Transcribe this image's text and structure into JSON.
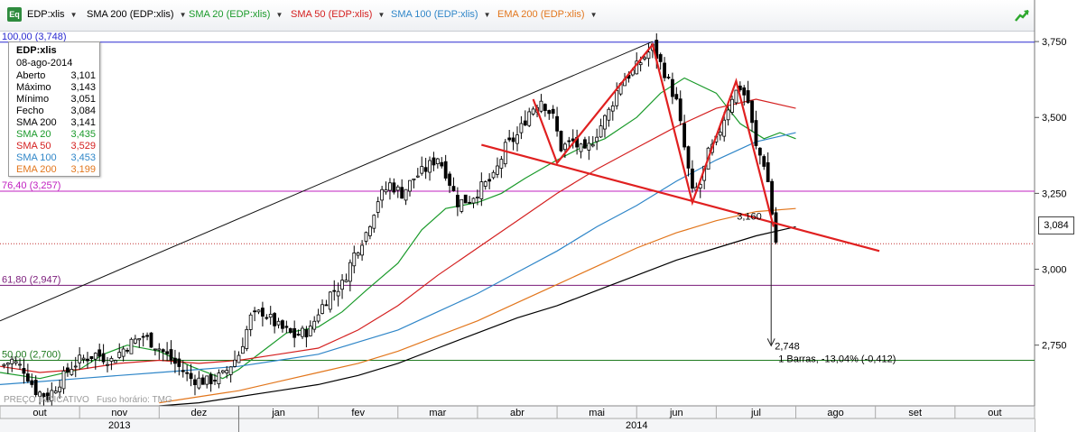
{
  "toolbar": {
    "eq_badge": "Eq",
    "symbol_label": "EDP:xlis",
    "indicators": [
      {
        "label": "SMA 200 (EDP:xlis)",
        "color": "#000000"
      },
      {
        "label": "SMA 20 (EDP:xlis)",
        "color": "#1a9a2a"
      },
      {
        "label": "SMA 50 (EDP:xlis)",
        "color": "#d42020"
      },
      {
        "label": "SMA 100 (EDP:xlis)",
        "color": "#2f86c8"
      },
      {
        "label": "EMA 200 (EDP:xlis)",
        "color": "#e2761c"
      }
    ]
  },
  "info_box": {
    "title": "EDP:xlis",
    "date": "08-ago-2014",
    "rows": [
      {
        "label": "Aberto",
        "value": "3,101",
        "color": "#000000"
      },
      {
        "label": "Máximo",
        "value": "3,143",
        "color": "#000000"
      },
      {
        "label": "Mínimo",
        "value": "3,051",
        "color": "#000000"
      },
      {
        "label": "Fecho",
        "value": "3,084",
        "color": "#000000"
      },
      {
        "label": "SMA 200",
        "value": "3,141",
        "color": "#000000"
      },
      {
        "label": "SMA 20",
        "value": "3,435",
        "color": "#1a9a2a"
      },
      {
        "label": "SMA 50",
        "value": "3,529",
        "color": "#d42020"
      },
      {
        "label": "SMA 100",
        "value": "3,453",
        "color": "#2f86c8"
      },
      {
        "label": "EMA 200",
        "value": "3,199",
        "color": "#e2761c"
      }
    ]
  },
  "price_tag": "3,084",
  "chart_data": {
    "type": "candlestick",
    "symbol": "EDP:xlis",
    "ylim": [
      2.55,
      3.78
    ],
    "y_ticks": [
      2.75,
      3.0,
      3.25,
      3.5,
      3.75
    ],
    "y_tick_labels": [
      "2,750",
      "3,000",
      "3,250",
      "3,500",
      "3,750"
    ],
    "x_month_labels": [
      "out",
      "nov",
      "dez",
      "jan",
      "fev",
      "mar",
      "abr",
      "mai",
      "jun",
      "jul",
      "ago",
      "set",
      "out"
    ],
    "x_year_labels": [
      "2013",
      "2014"
    ],
    "x_domain": [
      0,
      13
    ],
    "x_month_starts": [
      0,
      1,
      2,
      3,
      4,
      5,
      6,
      7,
      8,
      9,
      10,
      11,
      12,
      13
    ],
    "fib_levels": [
      {
        "label": "100,00 (3,748)",
        "value": 3.748,
        "color": "#2a2ad0"
      },
      {
        "label": "76,40 (3,257)",
        "value": 3.257,
        "color": "#c020c0"
      },
      {
        "label": "61,80 (2,947)",
        "value": 2.947,
        "color": "#7a1a7a"
      },
      {
        "label": "50,00 (2,700)",
        "value": 2.7,
        "color": "#1f7a1f"
      }
    ],
    "last_price": 3.084,
    "series": [
      {
        "name": "SMA 20",
        "color": "#1a9a2a",
        "points": [
          [
            0.0,
            2.66
          ],
          [
            0.5,
            2.64
          ],
          [
            1.0,
            2.67
          ],
          [
            1.3,
            2.72
          ],
          [
            1.6,
            2.75
          ],
          [
            2.0,
            2.73
          ],
          [
            2.4,
            2.68
          ],
          [
            2.8,
            2.64
          ],
          [
            3.0,
            2.67
          ],
          [
            3.3,
            2.73
          ],
          [
            3.6,
            2.79
          ],
          [
            4.0,
            2.81
          ],
          [
            4.3,
            2.86
          ],
          [
            4.6,
            2.93
          ],
          [
            5.0,
            3.02
          ],
          [
            5.3,
            3.13
          ],
          [
            5.6,
            3.2
          ],
          [
            6.0,
            3.22
          ],
          [
            6.3,
            3.25
          ],
          [
            6.6,
            3.3
          ],
          [
            7.0,
            3.36
          ],
          [
            7.3,
            3.4
          ],
          [
            7.6,
            3.43
          ],
          [
            8.0,
            3.5
          ],
          [
            8.3,
            3.58
          ],
          [
            8.6,
            3.63
          ],
          [
            9.0,
            3.58
          ],
          [
            9.3,
            3.48
          ],
          [
            9.6,
            3.43
          ],
          [
            9.8,
            3.45
          ],
          [
            10.0,
            3.43
          ]
        ]
      },
      {
        "name": "SMA 50",
        "color": "#d42020",
        "points": [
          [
            0.0,
            2.68
          ],
          [
            0.5,
            2.66
          ],
          [
            1.0,
            2.67
          ],
          [
            1.5,
            2.69
          ],
          [
            2.0,
            2.7
          ],
          [
            2.5,
            2.69
          ],
          [
            3.0,
            2.7
          ],
          [
            3.5,
            2.72
          ],
          [
            4.0,
            2.74
          ],
          [
            4.5,
            2.8
          ],
          [
            5.0,
            2.88
          ],
          [
            5.5,
            2.98
          ],
          [
            6.0,
            3.07
          ],
          [
            6.5,
            3.16
          ],
          [
            7.0,
            3.25
          ],
          [
            7.5,
            3.33
          ],
          [
            8.0,
            3.4
          ],
          [
            8.5,
            3.47
          ],
          [
            9.0,
            3.53
          ],
          [
            9.5,
            3.56
          ],
          [
            10.0,
            3.53
          ]
        ]
      },
      {
        "name": "SMA 100",
        "color": "#2f86c8",
        "points": [
          [
            0.0,
            2.62
          ],
          [
            0.5,
            2.63
          ],
          [
            1.0,
            2.64
          ],
          [
            1.5,
            2.65
          ],
          [
            2.0,
            2.66
          ],
          [
            2.5,
            2.67
          ],
          [
            3.0,
            2.68
          ],
          [
            3.5,
            2.7
          ],
          [
            4.0,
            2.72
          ],
          [
            4.5,
            2.76
          ],
          [
            5.0,
            2.8
          ],
          [
            5.5,
            2.86
          ],
          [
            6.0,
            2.92
          ],
          [
            6.5,
            2.99
          ],
          [
            7.0,
            3.06
          ],
          [
            7.5,
            3.14
          ],
          [
            8.0,
            3.21
          ],
          [
            8.5,
            3.29
          ],
          [
            9.0,
            3.36
          ],
          [
            9.5,
            3.42
          ],
          [
            10.0,
            3.45
          ]
        ]
      },
      {
        "name": "EMA 200",
        "color": "#e2761c",
        "points": [
          [
            2.0,
            2.56
          ],
          [
            2.5,
            2.58
          ],
          [
            3.0,
            2.6
          ],
          [
            3.5,
            2.63
          ],
          [
            4.0,
            2.66
          ],
          [
            4.5,
            2.69
          ],
          [
            5.0,
            2.73
          ],
          [
            5.5,
            2.78
          ],
          [
            6.0,
            2.83
          ],
          [
            6.5,
            2.89
          ],
          [
            7.0,
            2.95
          ],
          [
            7.5,
            3.01
          ],
          [
            8.0,
            3.07
          ],
          [
            8.5,
            3.12
          ],
          [
            9.0,
            3.16
          ],
          [
            9.5,
            3.19
          ],
          [
            10.0,
            3.2
          ]
        ]
      },
      {
        "name": "SMA 200",
        "color": "#000000",
        "points": [
          [
            2.0,
            2.55
          ],
          [
            2.5,
            2.56
          ],
          [
            3.0,
            2.58
          ],
          [
            3.5,
            2.6
          ],
          [
            4.0,
            2.62
          ],
          [
            4.5,
            2.65
          ],
          [
            5.0,
            2.69
          ],
          [
            5.5,
            2.74
          ],
          [
            6.0,
            2.79
          ],
          [
            6.5,
            2.84
          ],
          [
            7.0,
            2.88
          ],
          [
            7.5,
            2.93
          ],
          [
            8.0,
            2.98
          ],
          [
            8.5,
            3.03
          ],
          [
            9.0,
            3.07
          ],
          [
            9.5,
            3.11
          ],
          [
            10.0,
            3.14
          ]
        ]
      }
    ],
    "price_path": [
      [
        0.0,
        2.68
      ],
      [
        0.15,
        2.7
      ],
      [
        0.3,
        2.67
      ],
      [
        0.45,
        2.6
      ],
      [
        0.6,
        2.58
      ],
      [
        0.75,
        2.63
      ],
      [
        0.9,
        2.68
      ],
      [
        1.0,
        2.7
      ],
      [
        1.2,
        2.72
      ],
      [
        1.4,
        2.7
      ],
      [
        1.6,
        2.75
      ],
      [
        1.8,
        2.78
      ],
      [
        2.0,
        2.74
      ],
      [
        2.2,
        2.69
      ],
      [
        2.4,
        2.64
      ],
      [
        2.6,
        2.63
      ],
      [
        2.8,
        2.65
      ],
      [
        3.0,
        2.72
      ],
      [
        3.15,
        2.84
      ],
      [
        3.3,
        2.86
      ],
      [
        3.5,
        2.81
      ],
      [
        3.7,
        2.78
      ],
      [
        3.9,
        2.8
      ],
      [
        4.0,
        2.86
      ],
      [
        4.15,
        2.92
      ],
      [
        4.3,
        2.95
      ],
      [
        4.45,
        3.05
      ],
      [
        4.6,
        3.12
      ],
      [
        4.75,
        3.23
      ],
      [
        4.9,
        3.28
      ],
      [
        5.05,
        3.25
      ],
      [
        5.2,
        3.3
      ],
      [
        5.35,
        3.33
      ],
      [
        5.5,
        3.37
      ],
      [
        5.6,
        3.32
      ],
      [
        5.75,
        3.22
      ],
      [
        5.9,
        3.23
      ],
      [
        6.05,
        3.27
      ],
      [
        6.2,
        3.3
      ],
      [
        6.35,
        3.4
      ],
      [
        6.5,
        3.44
      ],
      [
        6.65,
        3.52
      ],
      [
        6.8,
        3.56
      ],
      [
        6.95,
        3.5
      ],
      [
        7.05,
        3.4
      ],
      [
        7.2,
        3.42
      ],
      [
        7.35,
        3.38
      ],
      [
        7.5,
        3.45
      ],
      [
        7.65,
        3.52
      ],
      [
        7.8,
        3.62
      ],
      [
        7.95,
        3.65
      ],
      [
        8.1,
        3.7
      ],
      [
        8.2,
        3.73
      ],
      [
        8.35,
        3.65
      ],
      [
        8.5,
        3.55
      ],
      [
        8.6,
        3.4
      ],
      [
        8.7,
        3.25
      ],
      [
        8.8,
        3.28
      ],
      [
        8.9,
        3.38
      ],
      [
        9.0,
        3.42
      ],
      [
        9.1,
        3.5
      ],
      [
        9.2,
        3.57
      ],
      [
        9.3,
        3.6
      ],
      [
        9.4,
        3.55
      ],
      [
        9.5,
        3.4
      ],
      [
        9.6,
        3.35
      ],
      [
        9.68,
        3.25
      ],
      [
        9.72,
        3.12
      ],
      [
        9.76,
        3.08
      ]
    ],
    "annotations": {
      "channel_line": [
        [
          0.0,
          2.83
        ],
        [
          8.2,
          3.75
        ]
      ],
      "pattern_points": [
        [
          6.7,
          3.56
        ],
        [
          7.0,
          3.35
        ],
        [
          8.2,
          3.74
        ],
        [
          8.7,
          3.22
        ],
        [
          9.25,
          3.62
        ],
        [
          9.72,
          3.14
        ]
      ],
      "neckline": [
        [
          6.05,
          3.41
        ],
        [
          11.05,
          3.06
        ]
      ],
      "target_arrow": {
        "from": [
          9.69,
          3.155
        ],
        "to": [
          9.69,
          2.748
        ]
      },
      "label_3160": "3,160",
      "label_2748": "2,748",
      "label_measure": "1 Barras, -13,04% (-0,412)"
    },
    "footer_note": "PREÇO INDICATIVO",
    "footer_timezone": "Fuso horário: TMG"
  }
}
